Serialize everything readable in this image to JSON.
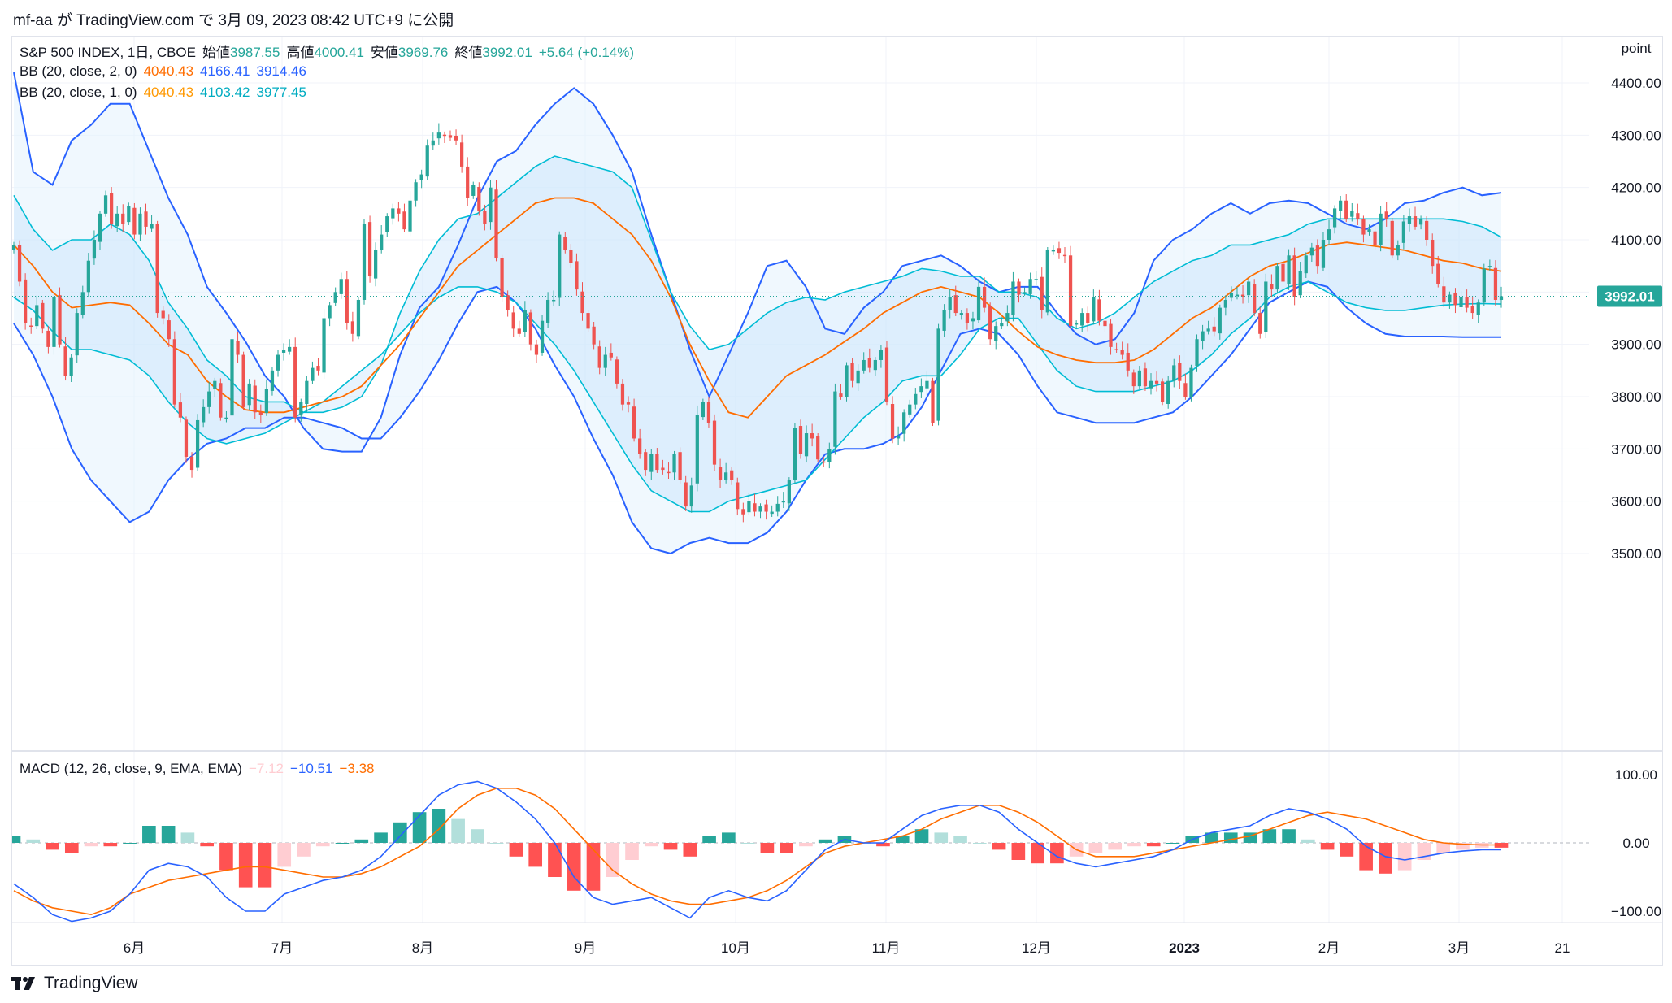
{
  "header": {
    "text": "mf-aa が TradingView.com で 3月 09, 2023 08:42 UTC+9 に公開"
  },
  "legend": {
    "symbol": "S&P 500 INDEX, 1日, CBOE",
    "open_label": "始値",
    "open": "3987.55",
    "high_label": "高値",
    "high": "4000.41",
    "low_label": "安値",
    "low": "3969.76",
    "close_label": "終値",
    "close": "3992.01",
    "change": "+5.64 (+0.14%)",
    "bb2_name": "BB (20, close, 2, 0)",
    "bb2_basis": "4040.43",
    "bb2_upper": "4166.41",
    "bb2_lower": "3914.46",
    "bb1_name": "BB (20, close, 1, 0)",
    "bb1_basis": "4040.43",
    "bb1_upper": "4103.42",
    "bb1_lower": "3977.45",
    "macd_name": "MACD (12, 26, close, 9, EMA, EMA)",
    "macd_hist": "−7.12",
    "macd_line": "−10.51",
    "macd_signal": "−3.38"
  },
  "footer": {
    "brand": "TradingView"
  },
  "colors": {
    "up": "#26a69a",
    "down": "#ef5350",
    "basis": "#ff6d00",
    "bb2": "#2962ff",
    "bb1": "#00bcd4",
    "macd_line": "#2962ff",
    "signal_line": "#ff6d00",
    "hist_up_strong": "#26a69a",
    "hist_up_weak": "#b2dfdb",
    "hist_down_strong": "#ff5252",
    "hist_down_weak": "#ffcdd2",
    "band_fill": "#e3f2fd",
    "last_price_bg": "#26a69a"
  },
  "chart_data": [
    {
      "type": "candlestick",
      "price_axis_title": "point",
      "y_ticks": [
        "4400.00",
        "4300.00",
        "4200.00",
        "4100.00",
        "4000.00",
        "3900.00",
        "3800.00",
        "3700.00",
        "3600.00",
        "3500.00"
      ],
      "x_ticks": [
        "6月",
        "7月",
        "8月",
        "9月",
        "10月",
        "11月",
        "12月",
        "2023",
        "2月",
        "3月",
        "21"
      ],
      "last_price_label": "3992.01",
      "ylim": [
        3480,
        4425
      ],
      "close": [
        4090,
        4020,
        3940,
        3935,
        3975,
        3930,
        3895,
        3990,
        3900,
        3840,
        3875,
        3960,
        4000,
        4060,
        4100,
        4150,
        4185,
        4130,
        4150,
        4130,
        4165,
        4110,
        4150,
        4125,
        4130,
        3960,
        3950,
        3910,
        3785,
        3760,
        3685,
        3660,
        3755,
        3780,
        3810,
        3830,
        3760,
        3760,
        3910,
        3880,
        3780,
        3825,
        3770,
        3765,
        3815,
        3850,
        3880,
        3890,
        3895,
        3760,
        3790,
        3830,
        3855,
        3850,
        3950,
        3975,
        4000,
        4025,
        3940,
        3920,
        3985,
        4130,
        4030,
        4080,
        4110,
        4145,
        4160,
        4150,
        4120,
        4175,
        4210,
        4225,
        4280,
        4290,
        4305,
        4300,
        4295,
        4290,
        4240,
        4180,
        4205,
        4155,
        4130,
        4200,
        4065,
        3990,
        3965,
        3930,
        3920,
        3965,
        3900,
        3880,
        3945,
        3985,
        3985,
        4110,
        4080,
        4055,
        4005,
        3960,
        3930,
        3900,
        3855,
        3880,
        3875,
        3825,
        3785,
        3785,
        3720,
        3690,
        3660,
        3690,
        3660,
        3660,
        3655,
        3690,
        3640,
        3590,
        3630,
        3765,
        3790,
        3750,
        3670,
        3640,
        3655,
        3640,
        3585,
        3575,
        3600,
        3580,
        3590,
        3580,
        3580,
        3595,
        3600,
        3640,
        3740,
        3690,
        3730,
        3720,
        3680,
        3675,
        3700,
        3810,
        3800,
        3860,
        3830,
        3850,
        3870,
        3855,
        3870,
        3890,
        3790,
        3720,
        3725,
        3770,
        3785,
        3805,
        3820,
        3830,
        3750,
        3930,
        3965,
        3990,
        3960,
        3960,
        3940,
        3950,
        4010,
        3970,
        3910,
        3935,
        3940,
        3960,
        4020,
        3995,
        4000,
        4025,
        4025,
        3965,
        4080,
        4080,
        4075,
        4070,
        3935,
        3940,
        3960,
        3940,
        3990,
        3945,
        3935,
        3895,
        3890,
        3880,
        3850,
        3820,
        3850,
        3820,
        3830,
        3825,
        3790,
        3830,
        3860,
        3830,
        3800,
        3855,
        3910,
        3925,
        3930,
        3925,
        3970,
        3985,
        3999,
        3995,
        3990,
        4020,
        3960,
        3920,
        4020,
        4005,
        4050,
        4020,
        4070,
        3990,
        4040,
        4070,
        4085,
        4050,
        4100,
        4120,
        4160,
        4175,
        4140,
        4155,
        4140,
        4110,
        4120,
        4090,
        4150,
        4140,
        4070,
        4090,
        4135,
        4145,
        4125,
        4140,
        4100,
        4050,
        4015,
        3980,
        3995,
        3975,
        3990,
        3970,
        3960,
        3980,
        4045,
        4050,
        3985,
        3992
      ],
      "bb_upper_2sd": [
        4420,
        4230,
        4205,
        4290,
        4320,
        4360,
        4360,
        4270,
        4180,
        4110,
        4010,
        3960,
        3905,
        3840,
        3800,
        3740,
        3700,
        3695,
        3695,
        3760,
        3880,
        3970,
        4010,
        4090,
        4180,
        4250,
        4270,
        4320,
        4360,
        4390,
        4360,
        4300,
        4230,
        4110,
        4000,
        3890,
        3800,
        3880,
        3960,
        4050,
        4060,
        4010,
        3930,
        3920,
        3970,
        4000,
        4050,
        4060,
        4070,
        4050,
        4020,
        4000,
        4010,
        4010,
        3960,
        3920,
        3900,
        3910,
        3960,
        4060,
        4100,
        4120,
        4150,
        4170,
        4150,
        4170,
        4175,
        4170,
        4150,
        4130,
        4120,
        4140,
        4170,
        4175,
        4190,
        4200,
        4185,
        4190
      ],
      "bb_upper_1sd": [
        4185,
        4120,
        4080,
        4100,
        4100,
        4130,
        4110,
        4060,
        3980,
        3930,
        3870,
        3840,
        3800,
        3790,
        3790,
        3770,
        3770,
        3780,
        3800,
        3860,
        3960,
        4040,
        4100,
        4140,
        4150,
        4180,
        4210,
        4240,
        4260,
        4250,
        4240,
        4230,
        4200,
        4100,
        4000,
        3935,
        3890,
        3900,
        3930,
        3960,
        3980,
        3990,
        3985,
        4000,
        4010,
        4020,
        4030,
        4045,
        4040,
        4030,
        4030,
        4000,
        4000,
        3990,
        3950,
        3930,
        3940,
        3960,
        3990,
        4020,
        4040,
        4060,
        4070,
        4090,
        4090,
        4100,
        4110,
        4130,
        4140,
        4140,
        4140,
        4140,
        4140,
        4140,
        4140,
        4135,
        4125,
        4105
      ],
      "bb_basis": [
        4090,
        4050,
        4000,
        3970,
        3975,
        3980,
        3975,
        3940,
        3900,
        3880,
        3830,
        3800,
        3775,
        3770,
        3770,
        3780,
        3790,
        3800,
        3820,
        3860,
        3900,
        3950,
        4000,
        4050,
        4080,
        4110,
        4140,
        4170,
        4180,
        4180,
        4170,
        4140,
        4110,
        4060,
        3990,
        3900,
        3830,
        3770,
        3760,
        3800,
        3840,
        3860,
        3880,
        3905,
        3930,
        3960,
        3980,
        4000,
        4010,
        4000,
        3990,
        3960,
        3925,
        3895,
        3880,
        3870,
        3865,
        3865,
        3870,
        3890,
        3920,
        3950,
        3970,
        4000,
        4030,
        4050,
        4060,
        4075,
        4090,
        4095,
        4090,
        4085,
        4080,
        4070,
        4060,
        4055,
        4045,
        4040
      ],
      "bb_lower_1sd": [
        3990,
        3965,
        3925,
        3890,
        3890,
        3880,
        3870,
        3840,
        3790,
        3750,
        3720,
        3710,
        3720,
        3730,
        3750,
        3770,
        3790,
        3820,
        3850,
        3880,
        3920,
        3960,
        3990,
        4010,
        4010,
        4000,
        3980,
        3940,
        3900,
        3850,
        3790,
        3730,
        3670,
        3620,
        3600,
        3580,
        3580,
        3600,
        3610,
        3620,
        3630,
        3640,
        3680,
        3720,
        3760,
        3790,
        3830,
        3840,
        3840,
        3880,
        3930,
        3950,
        3950,
        3900,
        3850,
        3820,
        3810,
        3810,
        3810,
        3820,
        3830,
        3850,
        3880,
        3920,
        3950,
        3990,
        4010,
        4020,
        4000,
        3980,
        3970,
        3965,
        3965,
        3970,
        3975,
        3977,
        3978,
        3977
      ],
      "bb_lower_2sd": [
        3940,
        3880,
        3800,
        3700,
        3640,
        3600,
        3560,
        3580,
        3640,
        3680,
        3710,
        3720,
        3740,
        3740,
        3760,
        3760,
        3750,
        3740,
        3720,
        3720,
        3760,
        3810,
        3870,
        3940,
        4000,
        4010,
        3980,
        3930,
        3860,
        3800,
        3720,
        3650,
        3560,
        3510,
        3500,
        3520,
        3530,
        3520,
        3520,
        3540,
        3580,
        3640,
        3690,
        3700,
        3700,
        3710,
        3730,
        3780,
        3850,
        3920,
        3930,
        3920,
        3880,
        3820,
        3770,
        3760,
        3750,
        3750,
        3750,
        3760,
        3770,
        3800,
        3840,
        3880,
        3930,
        3980,
        4000,
        4020,
        4010,
        3970,
        3940,
        3920,
        3915,
        3915,
        3915,
        3914,
        3914,
        3914
      ]
    },
    {
      "type": "macd",
      "ylim": [
        -150,
        130
      ],
      "y_ticks": [
        "100.00",
        "0.00",
        "−100.00"
      ],
      "macd": [
        -60,
        -80,
        -105,
        -115,
        -110,
        -100,
        -75,
        -40,
        -30,
        -35,
        -50,
        -80,
        -100,
        -100,
        -75,
        -65,
        -55,
        -50,
        -40,
        -20,
        10,
        40,
        70,
        85,
        90,
        80,
        60,
        35,
        0,
        -50,
        -80,
        -90,
        -85,
        -80,
        -95,
        -110,
        -80,
        -70,
        -80,
        -85,
        -70,
        -40,
        -10,
        5,
        0,
        0,
        20,
        40,
        50,
        55,
        55,
        45,
        20,
        0,
        -20,
        -30,
        -35,
        -30,
        -25,
        -20,
        -10,
        5,
        15,
        20,
        25,
        40,
        50,
        45,
        35,
        20,
        -5,
        -20,
        -25,
        -20,
        -15,
        -12,
        -10,
        -10
      ],
      "signal": [
        -70,
        -85,
        -95,
        -100,
        -105,
        -95,
        -75,
        -65,
        -55,
        -50,
        -45,
        -40,
        -35,
        -35,
        -40,
        -45,
        -50,
        -50,
        -45,
        -35,
        -20,
        -5,
        20,
        50,
        70,
        80,
        80,
        70,
        50,
        20,
        -10,
        -40,
        -60,
        -75,
        -85,
        -90,
        -90,
        -85,
        -80,
        -70,
        -55,
        -35,
        -15,
        -5,
        0,
        5,
        10,
        20,
        35,
        45,
        55,
        55,
        45,
        30,
        10,
        -10,
        -20,
        -20,
        -20,
        -15,
        -10,
        -5,
        0,
        5,
        10,
        20,
        30,
        40,
        45,
        40,
        35,
        25,
        15,
        5,
        0,
        -2,
        -3,
        -3
      ],
      "histogram": [
        10,
        5,
        -10,
        -15,
        -5,
        -5,
        0,
        25,
        25,
        15,
        -5,
        -40,
        -65,
        -65,
        -35,
        -20,
        -5,
        0,
        5,
        15,
        30,
        45,
        50,
        35,
        20,
        0,
        -20,
        -35,
        -50,
        -70,
        -70,
        -50,
        -25,
        -5,
        -10,
        -20,
        10,
        15,
        0,
        -15,
        -15,
        -5,
        5,
        10,
        0,
        -5,
        10,
        20,
        15,
        10,
        0,
        -10,
        -25,
        -30,
        -30,
        -20,
        -15,
        -10,
        -5,
        -5,
        0,
        10,
        15,
        15,
        15,
        20,
        20,
        5,
        -10,
        -20,
        -40,
        -45,
        -40,
        -25,
        -15,
        -10,
        -7,
        -7
      ]
    }
  ]
}
